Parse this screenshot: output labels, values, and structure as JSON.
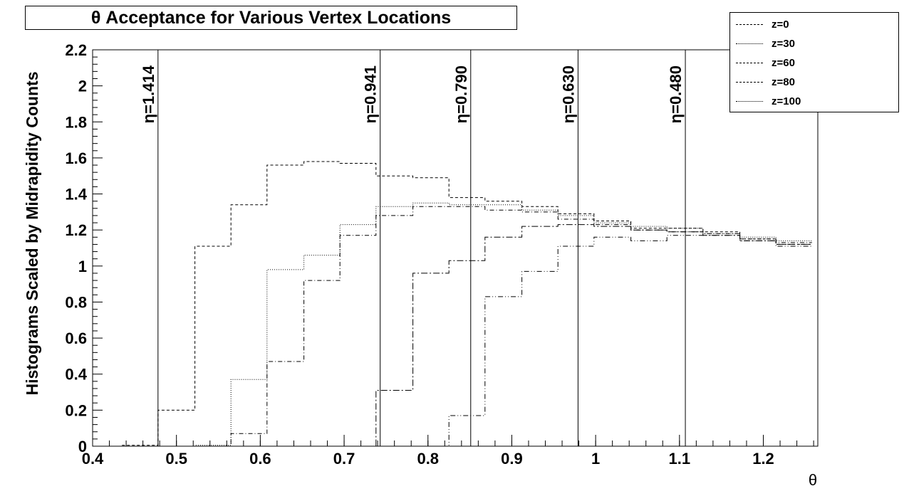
{
  "chart_data": {
    "type": "line",
    "title": "θ Acceptance for Various Vertex Locations",
    "xlabel": "θ",
    "ylabel": "Histograms Scaled by Midrapidity Counts",
    "xlim": [
      0.4,
      1.265
    ],
    "ylim": [
      0,
      2.2
    ],
    "x_ticks": [
      "0.4",
      "0.5",
      "0.6",
      "0.7",
      "0.8",
      "0.9",
      "1",
      "1.1",
      "1.2"
    ],
    "y_ticks": [
      "0",
      "0.2",
      "0.4",
      "0.6",
      "0.8",
      "1",
      "1.2",
      "1.4",
      "1.6",
      "1.8",
      "2",
      "2.2"
    ],
    "bin_edges": [
      0.435,
      0.478,
      0.522,
      0.565,
      0.608,
      0.652,
      0.695,
      0.738,
      0.782,
      0.825,
      0.868,
      0.912,
      0.955,
      0.998,
      1.042,
      1.085,
      1.128,
      1.172,
      1.215,
      1.258
    ],
    "series": [
      {
        "name": "z=0",
        "style": "dashed",
        "values": [
          0.005,
          0.2,
          1.11,
          1.34,
          1.56,
          1.58,
          1.57,
          1.5,
          1.49,
          1.38,
          1.36,
          1.33,
          1.29,
          1.25,
          1.21,
          1.21,
          1.19,
          1.15,
          1.12
        ]
      },
      {
        "name": "z=30",
        "style": "dotted",
        "values": [
          0.0,
          0.0,
          0.005,
          0.37,
          0.98,
          1.06,
          1.23,
          1.33,
          1.35,
          1.34,
          1.34,
          1.31,
          1.28,
          1.24,
          1.22,
          1.21,
          1.18,
          1.16,
          1.14
        ]
      },
      {
        "name": "z=60",
        "style": "dash-dot",
        "values": [
          0.0,
          0.0,
          0.0,
          0.07,
          0.47,
          0.92,
          1.17,
          1.28,
          1.33,
          1.33,
          1.31,
          1.3,
          1.26,
          1.23,
          1.2,
          1.19,
          1.18,
          1.15,
          1.13
        ]
      },
      {
        "name": "z=80",
        "style": "long-dash-dot",
        "values": [
          0.0,
          0.0,
          0.0,
          0.0,
          0.0,
          0.0,
          0.0,
          0.31,
          0.96,
          1.03,
          1.16,
          1.22,
          1.23,
          1.22,
          1.2,
          1.19,
          1.17,
          1.14,
          1.12
        ]
      },
      {
        "name": "z=100",
        "style": "dash-dot-dot",
        "values": [
          0.0,
          0.0,
          0.0,
          0.0,
          0.0,
          0.0,
          0.0,
          0.0,
          0.0,
          0.17,
          0.83,
          0.97,
          1.11,
          1.16,
          1.14,
          1.17,
          1.17,
          1.14,
          1.11
        ]
      }
    ],
    "markers": [
      {
        "x": 0.478,
        "label": "η=1.414"
      },
      {
        "x": 0.743,
        "label": "η=0.941"
      },
      {
        "x": 0.851,
        "label": "η=0.790"
      },
      {
        "x": 0.979,
        "label": "η=0.630"
      },
      {
        "x": 1.107,
        "label": "η=0.480"
      }
    ],
    "legend_position": "top-right",
    "grid": false
  }
}
